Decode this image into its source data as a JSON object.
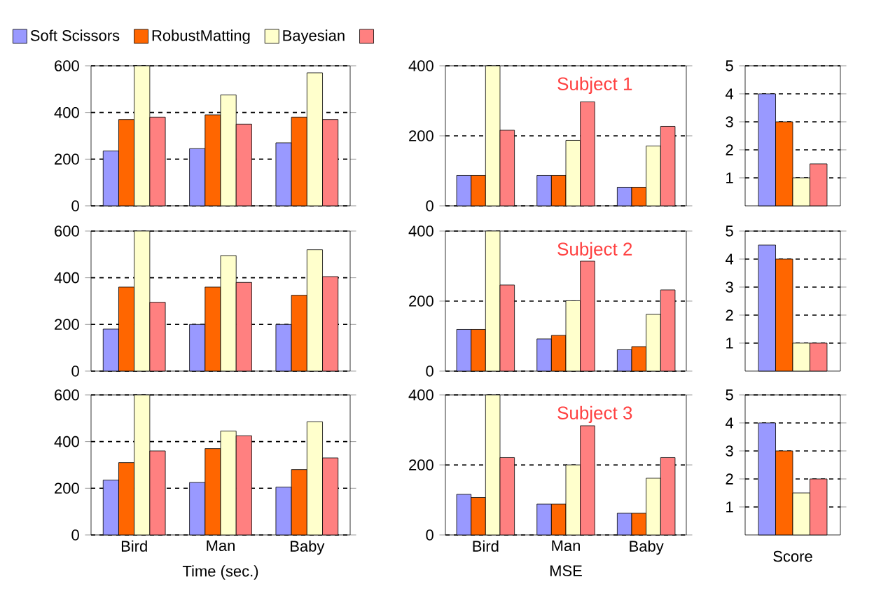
{
  "chart_data": [
    {
      "type": "bar",
      "categories": [
        null,
        null,
        null
      ],
      "ylim": [
        0,
        600
      ],
      "yticks": [
        0,
        200,
        400,
        600
      ],
      "grid": "y",
      "tick_labels": "y",
      "legend": "top",
      "series": [
        {
          "name": "Soft Scissors",
          "color": "#9999ff",
          "values": [
            235,
            245,
            270
          ]
        },
        {
          "name": "RobustMatting",
          "color": "#ff6600",
          "values": [
            370,
            390,
            380
          ]
        },
        {
          "name": "Bayesian",
          "color": "#ffffcc",
          "values": [
            600,
            475,
            570
          ]
        },
        {
          "color": "#ff8080",
          "values": [
            380,
            350,
            370
          ]
        }
      ]
    },
    {
      "type": "bar",
      "categories": [
        null,
        null,
        null
      ],
      "ylim": [
        0,
        400
      ],
      "yticks": [
        0,
        200,
        400
      ],
      "grid": "y",
      "tick_labels": "y",
      "annotations": [
        "Subject 1"
      ],
      "series": [
        {
          "color": "#9999ff",
          "values": [
            87,
            87,
            53
          ]
        },
        {
          "color": "#ff6600",
          "values": [
            87,
            87,
            53
          ]
        },
        {
          "color": "#ffffcc",
          "values": [
            400,
            187,
            171
          ]
        },
        {
          "color": "#ff8080",
          "values": [
            216,
            297,
            227
          ]
        }
      ]
    },
    {
      "type": "bar",
      "categories": [
        null
      ],
      "ylim": [
        0,
        5
      ],
      "yticks": [
        1,
        2,
        3,
        4,
        5
      ],
      "grid": "y",
      "tick_labels": "y",
      "series": [
        {
          "color": "#9999ff",
          "values": [
            4
          ]
        },
        {
          "color": "#ff6600",
          "values": [
            3
          ]
        },
        {
          "color": "#ffffcc",
          "values": [
            1
          ]
        },
        {
          "color": "#ff8080",
          "values": [
            1.5
          ]
        }
      ]
    },
    {
      "type": "bar",
      "categories": [
        null,
        null,
        null
      ],
      "ylim": [
        0,
        600
      ],
      "yticks": [
        0,
        200,
        400,
        600
      ],
      "grid": "y",
      "tick_labels": "y",
      "series": [
        {
          "color": "#9999ff",
          "values": [
            180,
            200,
            200
          ]
        },
        {
          "color": "#ff6600",
          "values": [
            360,
            360,
            325
          ]
        },
        {
          "color": "#ffffcc",
          "values": [
            600,
            495,
            520
          ]
        },
        {
          "color": "#ff8080",
          "values": [
            295,
            380,
            405
          ]
        }
      ]
    },
    {
      "type": "bar",
      "categories": [
        null,
        null,
        null
      ],
      "ylim": [
        0,
        400
      ],
      "yticks": [
        0,
        200,
        400
      ],
      "grid": "y",
      "tick_labels": "y",
      "annotations": [
        "Subject 2"
      ],
      "series": [
        {
          "color": "#9999ff",
          "values": [
            119,
            92,
            61
          ]
        },
        {
          "color": "#ff6600",
          "values": [
            119,
            102,
            70
          ]
        },
        {
          "color": "#ffffcc",
          "values": [
            400,
            201,
            162
          ]
        },
        {
          "color": "#ff8080",
          "values": [
            246,
            314,
            232
          ]
        }
      ]
    },
    {
      "type": "bar",
      "categories": [
        null
      ],
      "ylim": [
        0,
        5
      ],
      "yticks": [
        1,
        2,
        3,
        4,
        5
      ],
      "grid": "y",
      "tick_labels": "y",
      "series": [
        {
          "color": "#9999ff",
          "values": [
            4.5
          ]
        },
        {
          "color": "#ff6600",
          "values": [
            4
          ]
        },
        {
          "color": "#ffffcc",
          "values": [
            1
          ]
        },
        {
          "color": "#ff8080",
          "values": [
            1
          ]
        }
      ]
    },
    {
      "type": "bar",
      "categories": [
        "Bird",
        "Man",
        "Baby"
      ],
      "ylim": [
        0,
        600
      ],
      "yticks": [
        0,
        200,
        400,
        600
      ],
      "grid": "y",
      "xlabel": "Time (sec.)",
      "series": [
        {
          "color": "#9999ff",
          "values": [
            235,
            225,
            205
          ]
        },
        {
          "color": "#ff6600",
          "values": [
            310,
            370,
            280
          ]
        },
        {
          "color": "#ffffcc",
          "values": [
            600,
            445,
            485
          ]
        },
        {
          "color": "#ff8080",
          "values": [
            360,
            425,
            330
          ]
        }
      ]
    },
    {
      "type": "bar",
      "categories": [
        "Bird",
        "Man",
        "Baby"
      ],
      "ylim": [
        0,
        400
      ],
      "yticks": [
        0,
        200,
        400
      ],
      "grid": "y",
      "xlabel": "MSE",
      "annotations": [
        "Subject 3"
      ],
      "series": [
        {
          "color": "#9999ff",
          "values": [
            116,
            88,
            62
          ]
        },
        {
          "color": "#ff6600",
          "values": [
            107,
            88,
            62
          ]
        },
        {
          "color": "#ffffcc",
          "values": [
            400,
            200,
            162
          ]
        },
        {
          "color": "#ff8080",
          "values": [
            221,
            312,
            221
          ]
        }
      ]
    },
    {
      "type": "bar",
      "categories": [
        null
      ],
      "ylim": [
        0,
        5
      ],
      "yticks": [
        1,
        2,
        3,
        4,
        5
      ],
      "grid": "y",
      "xlabel": "Score",
      "series": [
        {
          "color": "#9999ff",
          "values": [
            4
          ]
        },
        {
          "color": "#ff6600",
          "values": [
            3
          ]
        },
        {
          "color": "#ffffcc",
          "values": [
            1.5
          ]
        },
        {
          "color": "#ff8080",
          "values": [
            2
          ]
        }
      ]
    }
  ]
}
